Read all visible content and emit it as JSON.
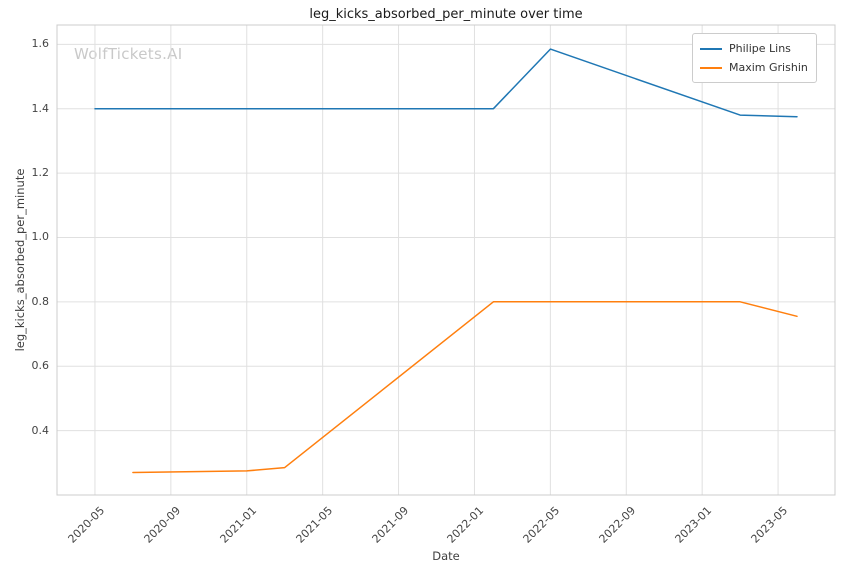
{
  "chart_data": {
    "type": "line",
    "title": "leg_kicks_absorbed_per_minute over time",
    "xlabel": "Date",
    "ylabel": "leg_kicks_absorbed_per_minute",
    "watermark": "WolfTickets.AI",
    "grid": true,
    "legend_position": "upper right",
    "x_tick_labels": [
      "2020-05",
      "2020-09",
      "2021-01",
      "2021-05",
      "2021-09",
      "2022-01",
      "2022-05",
      "2022-09",
      "2023-01",
      "2023-05"
    ],
    "y_tick_labels": [
      "0.4",
      "0.6",
      "0.8",
      "1.0",
      "1.2",
      "1.4",
      "1.6"
    ],
    "ylim": [
      0.2,
      1.66
    ],
    "x_pad_months": 2,
    "series": [
      {
        "name": "Philipe Lins",
        "color": "#1f77b4",
        "points": [
          [
            "2020-05",
            1.4
          ],
          [
            "2022-02",
            1.4
          ],
          [
            "2022-05",
            1.585
          ],
          [
            "2023-03",
            1.38
          ],
          [
            "2023-06",
            1.375
          ]
        ]
      },
      {
        "name": "Maxim Grishin",
        "color": "#ff7f0e",
        "points": [
          [
            "2020-07",
            0.27
          ],
          [
            "2021-01",
            0.275
          ],
          [
            "2021-03",
            0.285
          ],
          [
            "2022-02",
            0.8
          ],
          [
            "2023-03",
            0.8
          ],
          [
            "2023-06",
            0.755
          ]
        ]
      }
    ]
  }
}
